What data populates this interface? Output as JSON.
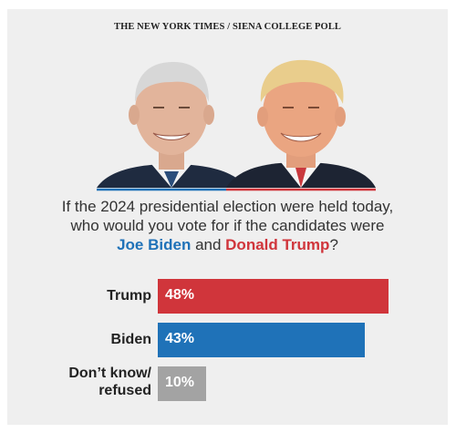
{
  "source": "THE NEW YORK TIMES / SIENA COLLEGE POLL",
  "question": {
    "line1": "If the 2024 presidential election were held today,",
    "line2": "who would you vote for if the candidates were",
    "biden_name": "Joe Biden",
    "and": " and ",
    "trump_name": "Donald Trump",
    "end": "?"
  },
  "colors": {
    "trump": "#d0353b",
    "biden": "#1f72b8",
    "undecided": "#a3a3a3"
  },
  "chart_data": {
    "type": "bar",
    "orientation": "horizontal",
    "categories": [
      "Trump",
      "Biden",
      "Don’t know/ refused"
    ],
    "values": [
      48,
      43,
      10
    ],
    "value_labels": [
      "48%",
      "43%",
      "10%"
    ],
    "xlim": [
      0,
      48
    ]
  }
}
